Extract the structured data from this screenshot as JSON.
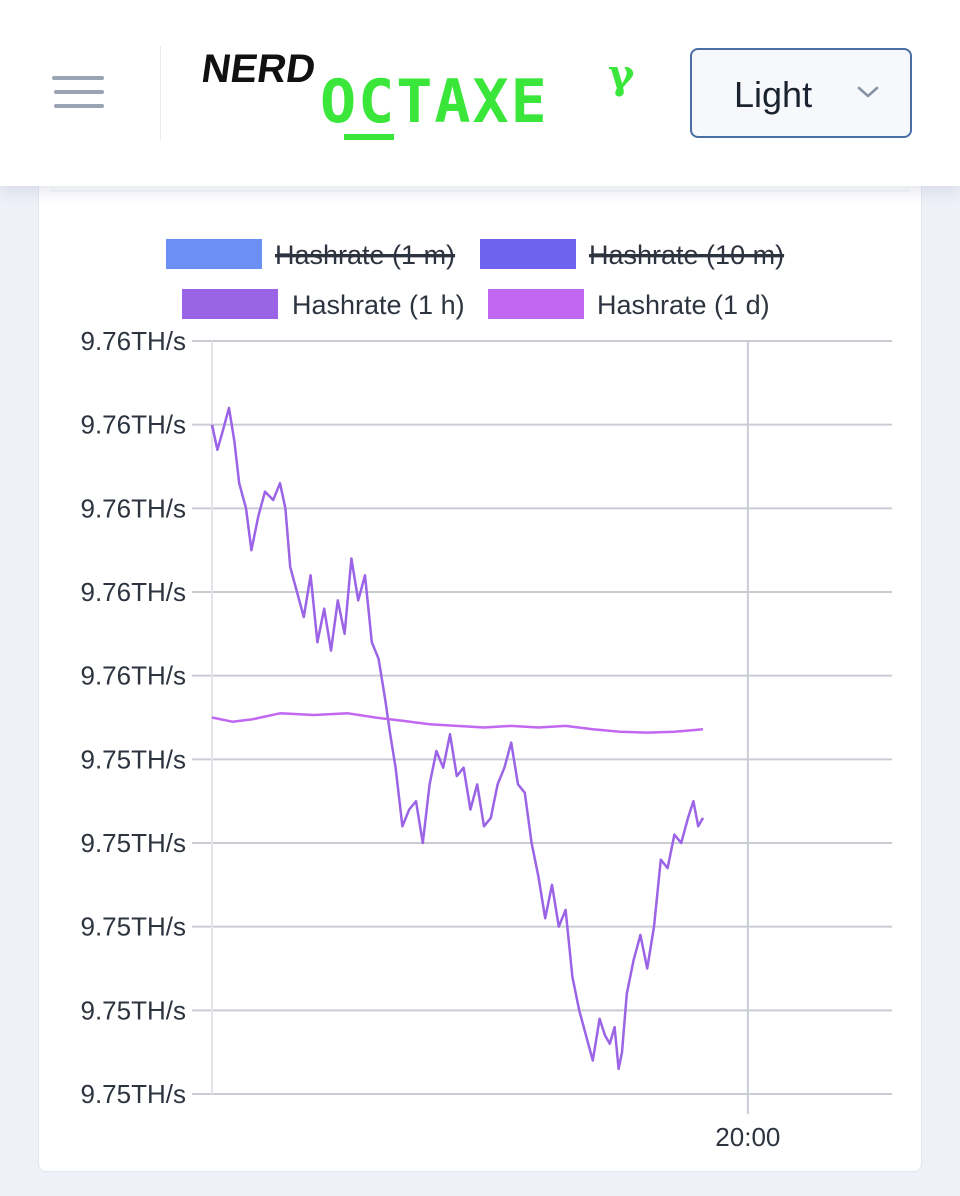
{
  "header": {
    "logo_small": "NERD",
    "logo_main": "OCTAXE",
    "logo_sup": "γ",
    "theme_select": {
      "value": "Light"
    }
  },
  "colors": {
    "series_1m": "#6b8ff5",
    "series_10m": "#6e63ee",
    "series_1h": "#9b63e6",
    "series_1d": "#c267f2",
    "grid": "#c9ccd3",
    "logo_green": "#39e639"
  },
  "chart_data": {
    "type": "line",
    "legend_position": "top",
    "grid": true,
    "yticks": [
      "9.76TH/s",
      "9.76TH/s",
      "9.76TH/s",
      "9.76TH/s",
      "9.76TH/s",
      "9.75TH/s",
      "9.75TH/s",
      "9.75TH/s",
      "9.75TH/s",
      "9.75TH/s"
    ],
    "xticks": [
      {
        "label": "20:00",
        "x": 0.788
      }
    ],
    "xlim": [
      0,
      1
    ],
    "ylim": [
      0,
      9
    ],
    "series": [
      {
        "name": "Hashrate (1 m)",
        "hidden": true,
        "values": []
      },
      {
        "name": "Hashrate (10 m)",
        "hidden": true,
        "values": []
      },
      {
        "name": "Hashrate (1 h)",
        "hidden": false,
        "points": [
          [
            0.0,
            8.0
          ],
          [
            0.008,
            7.7
          ],
          [
            0.015,
            7.9
          ],
          [
            0.025,
            8.2
          ],
          [
            0.033,
            7.8
          ],
          [
            0.04,
            7.3
          ],
          [
            0.05,
            7.0
          ],
          [
            0.058,
            6.5
          ],
          [
            0.068,
            6.9
          ],
          [
            0.078,
            7.2
          ],
          [
            0.09,
            7.1
          ],
          [
            0.1,
            7.3
          ],
          [
            0.108,
            7.0
          ],
          [
            0.115,
            6.3
          ],
          [
            0.125,
            6.0
          ],
          [
            0.135,
            5.7
          ],
          [
            0.145,
            6.2
          ],
          [
            0.155,
            5.4
          ],
          [
            0.165,
            5.8
          ],
          [
            0.175,
            5.3
          ],
          [
            0.185,
            5.9
          ],
          [
            0.195,
            5.5
          ],
          [
            0.205,
            6.4
          ],
          [
            0.215,
            5.9
          ],
          [
            0.225,
            6.2
          ],
          [
            0.235,
            5.4
          ],
          [
            0.245,
            5.2
          ],
          [
            0.255,
            4.7
          ],
          [
            0.262,
            4.3
          ],
          [
            0.27,
            3.9
          ],
          [
            0.28,
            3.2
          ],
          [
            0.29,
            3.4
          ],
          [
            0.3,
            3.5
          ],
          [
            0.31,
            3.0
          ],
          [
            0.32,
            3.7
          ],
          [
            0.33,
            4.1
          ],
          [
            0.34,
            3.9
          ],
          [
            0.35,
            4.3
          ],
          [
            0.36,
            3.8
          ],
          [
            0.37,
            3.9
          ],
          [
            0.38,
            3.4
          ],
          [
            0.39,
            3.7
          ],
          [
            0.4,
            3.2
          ],
          [
            0.41,
            3.3
          ],
          [
            0.42,
            3.7
          ],
          [
            0.43,
            3.9
          ],
          [
            0.44,
            4.2
          ],
          [
            0.45,
            3.7
          ],
          [
            0.46,
            3.6
          ],
          [
            0.47,
            3.0
          ],
          [
            0.48,
            2.6
          ],
          [
            0.49,
            2.1
          ],
          [
            0.5,
            2.5
          ],
          [
            0.51,
            2.0
          ],
          [
            0.52,
            2.2
          ],
          [
            0.53,
            1.4
          ],
          [
            0.54,
            1.0
          ],
          [
            0.55,
            0.7
          ],
          [
            0.56,
            0.4
          ],
          [
            0.57,
            0.9
          ],
          [
            0.578,
            0.7
          ],
          [
            0.585,
            0.6
          ],
          [
            0.592,
            0.8
          ],
          [
            0.598,
            0.3
          ],
          [
            0.603,
            0.5
          ],
          [
            0.61,
            1.2
          ],
          [
            0.62,
            1.6
          ],
          [
            0.63,
            1.9
          ],
          [
            0.64,
            1.5
          ],
          [
            0.65,
            2.0
          ],
          [
            0.66,
            2.8
          ],
          [
            0.67,
            2.7
          ],
          [
            0.68,
            3.1
          ],
          [
            0.69,
            3.0
          ],
          [
            0.7,
            3.3
          ],
          [
            0.708,
            3.5
          ],
          [
            0.715,
            3.2
          ],
          [
            0.722,
            3.3
          ]
        ]
      },
      {
        "name": "Hashrate (1 d)",
        "hidden": false,
        "points": [
          [
            0.0,
            4.5
          ],
          [
            0.03,
            4.45
          ],
          [
            0.06,
            4.48
          ],
          [
            0.1,
            4.55
          ],
          [
            0.15,
            4.53
          ],
          [
            0.2,
            4.55
          ],
          [
            0.24,
            4.5
          ],
          [
            0.28,
            4.46
          ],
          [
            0.32,
            4.42
          ],
          [
            0.36,
            4.4
          ],
          [
            0.4,
            4.38
          ],
          [
            0.44,
            4.4
          ],
          [
            0.48,
            4.38
          ],
          [
            0.52,
            4.4
          ],
          [
            0.56,
            4.36
          ],
          [
            0.6,
            4.33
          ],
          [
            0.64,
            4.32
          ],
          [
            0.68,
            4.33
          ],
          [
            0.722,
            4.36
          ]
        ]
      }
    ]
  }
}
